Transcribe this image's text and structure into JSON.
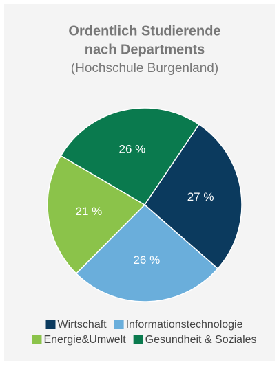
{
  "chart_data": {
    "type": "pie",
    "title": [
      "Ordentlich Studierende",
      "nach Departments"
    ],
    "subtitle": "(Hochschule Burgenland)",
    "categories": [
      "Wirtschaft",
      "Informationstechnologie",
      "Energie&Umwelt",
      "Gesundheit & Soziales"
    ],
    "values": [
      27,
      26,
      21,
      26
    ],
    "value_labels": [
      "27 %",
      "26 %",
      "21 %",
      "26 %"
    ],
    "colors": [
      "#0b3a5e",
      "#6aaedb",
      "#8bc34a",
      "#0a7a4e"
    ],
    "start_angle": 34,
    "legend": "bottom"
  }
}
